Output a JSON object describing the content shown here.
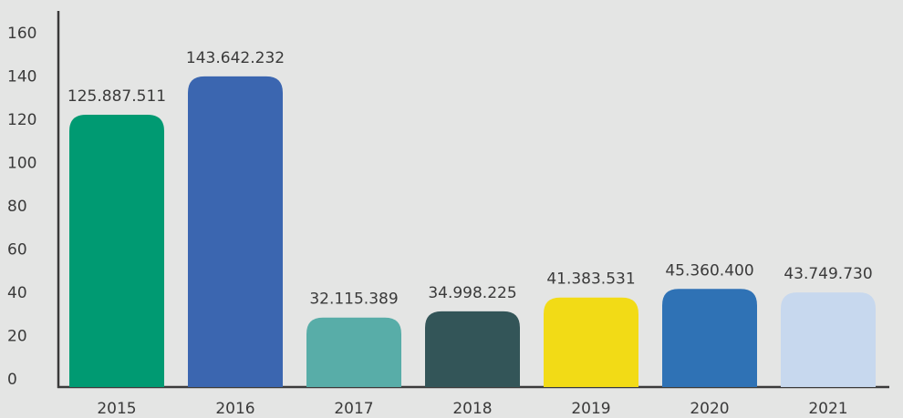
{
  "chart_data": {
    "type": "bar",
    "categories": [
      "2015",
      "2016",
      "2017",
      "2018",
      "2019",
      "2020",
      "2021"
    ],
    "values": [
      125.887511,
      143.642232,
      32.115389,
      34.998225,
      41.383531,
      45.3604,
      43.74973
    ],
    "value_labels": [
      "125.887.511",
      "143.642.232",
      "32.115.389",
      "34.998.225",
      "41.383.531",
      "45.360.400",
      "43.749.730"
    ],
    "colors": [
      "#009a72",
      "#3b66b0",
      "#58ada8",
      "#335558",
      "#f2db16",
      "#2f72b5",
      "#c7d8ee"
    ],
    "ylim": [
      0,
      160
    ],
    "yticks": [
      0,
      20,
      40,
      60,
      80,
      100,
      120,
      140,
      160
    ],
    "grid": false
  }
}
